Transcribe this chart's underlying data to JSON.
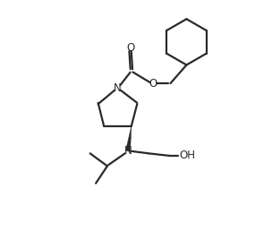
{
  "background_color": "#ffffff",
  "line_color": "#2a2a2a",
  "line_width": 1.6,
  "figsize": [
    3.04,
    2.58
  ],
  "dpi": 100,
  "xlim": [
    0,
    10
  ],
  "ylim": [
    0,
    10
  ]
}
